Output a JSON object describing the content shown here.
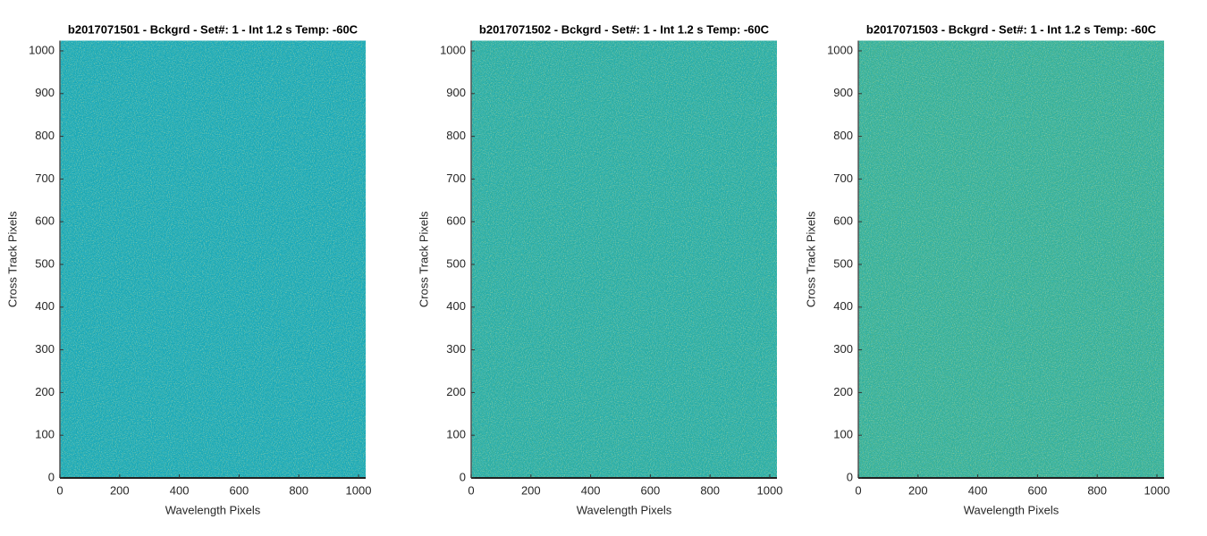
{
  "chart_data": [
    {
      "type": "image",
      "title": "b2017071501 - Bckgrd - Set#: 1 - Int 1.2 s Temp: -60C",
      "x_label": "Wavelength Pixels",
      "y_label": "Cross Track Pixels",
      "color": "#1ba8b4",
      "xlim": [
        0,
        1024
      ],
      "ylim": [
        0,
        1024
      ],
      "xticks": [
        0,
        200,
        400,
        600,
        800,
        1000
      ],
      "yticks": [
        0,
        100,
        200,
        300,
        400,
        500,
        600,
        700,
        800,
        900,
        1000
      ]
    },
    {
      "type": "image",
      "title": "b2017071502 - Bckgrd - Set#: 1 - Int 1.2 s Temp: -60C",
      "x_label": "Wavelength Pixels",
      "y_label": "Cross Track Pixels",
      "color": "#2aaca2",
      "xlim": [
        0,
        1024
      ],
      "ylim": [
        0,
        1024
      ],
      "xticks": [
        0,
        200,
        400,
        600,
        800,
        1000
      ],
      "yticks": [
        0,
        100,
        200,
        300,
        400,
        500,
        600,
        700,
        800,
        900,
        1000
      ]
    },
    {
      "type": "image",
      "title": "b2017071503 - Bckgrd - Set#: 1 - Int 1.2 s Temp: -60C",
      "x_label": "Wavelength Pixels",
      "y_label": "Cross Track Pixels",
      "color": "#36af96",
      "xlim": [
        0,
        1024
      ],
      "ylim": [
        0,
        1024
      ],
      "xticks": [
        0,
        200,
        400,
        600,
        800,
        1000
      ],
      "yticks": [
        0,
        100,
        200,
        300,
        400,
        500,
        600,
        700,
        800,
        900,
        1000
      ]
    }
  ]
}
